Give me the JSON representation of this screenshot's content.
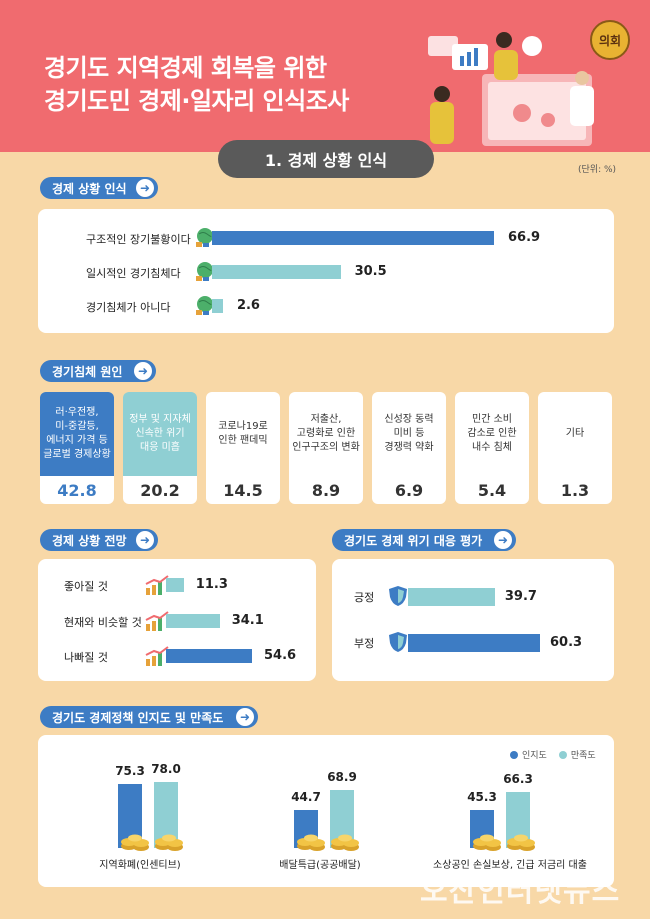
{
  "header": {
    "title_line1": "경기도 지역경제 회복을 위한",
    "title_line2": "경기도민 경제·일자리 인식조사",
    "seal_text": "의회",
    "bg_color": "#f06b6f"
  },
  "subtitle": "1. 경제 상황 인식",
  "unit": "(단위: %)",
  "colors": {
    "dark_blue": "#3d7cc4",
    "light_teal": "#8fcfd3",
    "background": "#f8d8a7"
  },
  "chart_data": [
    {
      "type": "bar",
      "orientation": "horizontal",
      "title": "경제 상황 인식",
      "categories": [
        "구조적인 장기불황이다",
        "일시적인 경기침체다",
        "경기침체가 아니다"
      ],
      "values": [
        66.9,
        30.5,
        2.6
      ],
      "colors": [
        "#3d7cc4",
        "#8fcfd3",
        "#8fcfd3"
      ]
    },
    {
      "type": "table",
      "title": "경기침체 원인",
      "categories": [
        "러·우전쟁, 미-중갈등, 에너지 가격 등 글로벌 경제상황",
        "정부 및 지자체 신속한 위기 대응 미흡",
        "코로나19로 인한 팬데믹",
        "저출산, 고령화로 인한 인구구조의 변화",
        "신성장 동력 미비 등 경쟁력 약화",
        "민간 소비 감소로 인한 내수 침체",
        "기타"
      ],
      "lines": [
        [
          "러·우전쟁,",
          "미-중갈등,",
          "에너지 가격 등",
          "글로벌 경제상황"
        ],
        [
          "정부 및 지자체",
          "신속한 위기",
          "대응 미흡"
        ],
        [
          "코로나19로",
          "인한 팬데믹"
        ],
        [
          "저출산,",
          "고령화로 인한",
          "인구구조의 변화"
        ],
        [
          "신성장 동력",
          "미비 등",
          "경쟁력 약화"
        ],
        [
          "민간 소비",
          "감소로 인한",
          "내수 침체"
        ],
        [
          "기타"
        ]
      ],
      "values": [
        42.8,
        20.2,
        14.5,
        8.9,
        6.9,
        5.4,
        1.3
      ]
    },
    {
      "type": "bar",
      "orientation": "horizontal",
      "title": "경제 상황 전망",
      "categories": [
        "좋아질 것",
        "현재와 비슷할 것",
        "나빠질 것"
      ],
      "values": [
        11.3,
        34.1,
        54.6
      ],
      "colors": [
        "#8fcfd3",
        "#8fcfd3",
        "#3d7cc4"
      ]
    },
    {
      "type": "bar",
      "orientation": "horizontal",
      "title": "경기도 경제 위기 대응 평가",
      "categories": [
        "긍정",
        "부정"
      ],
      "values": [
        39.7,
        60.3
      ],
      "colors": [
        "#8fcfd3",
        "#3d7cc4"
      ]
    },
    {
      "type": "bar",
      "title": "경기도 경제정책 인지도 및 만족도",
      "categories": [
        "지역화폐(인센티브)",
        "배달특급(공공배달)",
        "소상공인 손실보상, 긴급 저금리 대출"
      ],
      "series": [
        {
          "name": "인지도",
          "values": [
            75.3,
            44.7,
            45.3
          ],
          "color": "#3d7cc4"
        },
        {
          "name": "만족도",
          "values": [
            78.0,
            68.9,
            66.3
          ],
          "color": "#8fcfd3"
        }
      ],
      "legend": "top-right"
    }
  ],
  "watermark": "오산인터넷뉴스"
}
